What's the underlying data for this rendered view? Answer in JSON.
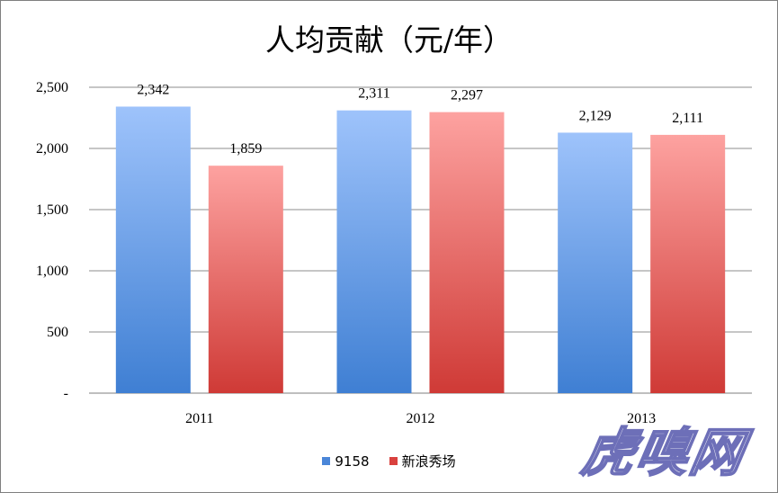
{
  "chart_data": {
    "type": "bar",
    "title": "人均贡献（元/年）",
    "categories": [
      "2011",
      "2012",
      "2013"
    ],
    "series": [
      {
        "name": "9158",
        "values": [
          2342,
          2311,
          2129
        ],
        "color": "#4a86d8",
        "data_labels": [
          "2,342",
          "2,311",
          "2,129"
        ]
      },
      {
        "name": "新浪秀场",
        "values": [
          1859,
          2297,
          2111
        ],
        "color": "#d9413e",
        "data_labels": [
          "1,859",
          "2,297",
          "2,111"
        ]
      }
    ],
    "y_ticks": [
      0,
      500,
      1000,
      1500,
      2000,
      2500
    ],
    "y_tick_labels": [
      "-",
      "500",
      "1,000",
      "1,500",
      "2,000",
      "2,500"
    ],
    "ylim": [
      0,
      2500
    ],
    "grid": true,
    "legend_position": "bottom"
  },
  "watermark": {
    "text": "虎嗅网"
  }
}
